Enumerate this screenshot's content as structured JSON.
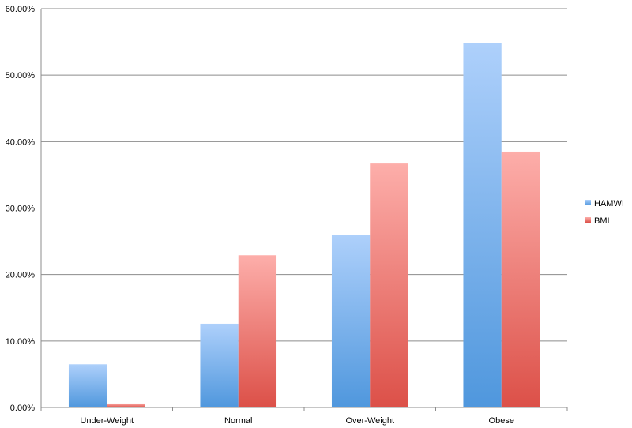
{
  "chart_data": {
    "type": "bar",
    "categories": [
      "Under-Weight",
      "Normal",
      "Over-Weight",
      "Obese"
    ],
    "series": [
      {
        "name": "HAMWI",
        "values": [
          6.5,
          12.6,
          26.0,
          54.8
        ],
        "color_top": "#aed0fb",
        "color_bottom": "#4f97dd"
      },
      {
        "name": "BMI",
        "values": [
          0.6,
          22.9,
          36.7,
          38.5
        ],
        "color_top": "#fdaeaa",
        "color_bottom": "#dc5048"
      }
    ],
    "ylim": [
      0,
      60
    ],
    "yticks": [
      0,
      10,
      20,
      30,
      40,
      50,
      60
    ],
    "ytick_labels": [
      "0.00%",
      "10.00%",
      "20.00%",
      "30.00%",
      "40.00%",
      "50.00%",
      "60.00%"
    ],
    "grid": true,
    "legend": "right",
    "title": "",
    "xlabel": "",
    "ylabel": ""
  }
}
